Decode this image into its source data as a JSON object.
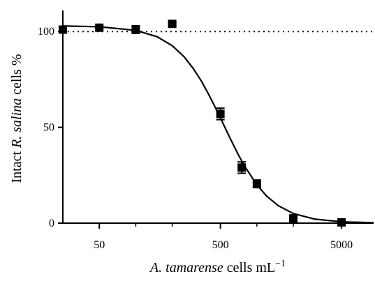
{
  "chart_data": {
    "type": "scatter",
    "x_label": {
      "species": "A. tamarense",
      "unit": "cells mL",
      "exponent": "−1"
    },
    "y_label": {
      "prefix": "Intact",
      "species": "R. salina",
      "suffix": "cells %"
    },
    "xscale": "log",
    "xlim": [
      25,
      9200
    ],
    "ylim": [
      0,
      111
    ],
    "xticks": [
      50,
      500,
      5000
    ],
    "xminorticks": [
      100,
      200,
      1000,
      2000
    ],
    "yticks": [
      0,
      50,
      100
    ],
    "reference_line": 100,
    "color": "#000000",
    "series": [
      {
        "x": [
          25,
          50,
          100,
          200,
          500,
          750,
          1000,
          2000,
          5000
        ],
        "values": [
          101,
          102,
          101,
          104,
          57,
          29,
          20.5,
          2.5,
          0.4
        ],
        "errors": [
          0.5,
          0.5,
          2,
          0.5,
          3,
          3,
          2,
          0.5,
          0.5
        ]
      }
    ],
    "fit": {
      "x": [
        25,
        50,
        100,
        150,
        200,
        250,
        300,
        350,
        400,
        450,
        500,
        600,
        700,
        800,
        1000,
        1200,
        1500,
        2000,
        3000,
        5000,
        9200
      ],
      "values": [
        102.9,
        102.5,
        100.6,
        97.3,
        92.6,
        86.9,
        80.5,
        73.9,
        67.2,
        60.8,
        54.9,
        44.4,
        35.9,
        29.3,
        20.0,
        14.2,
        9.1,
        5.0,
        2.1,
        0.7,
        0.2
      ]
    }
  }
}
